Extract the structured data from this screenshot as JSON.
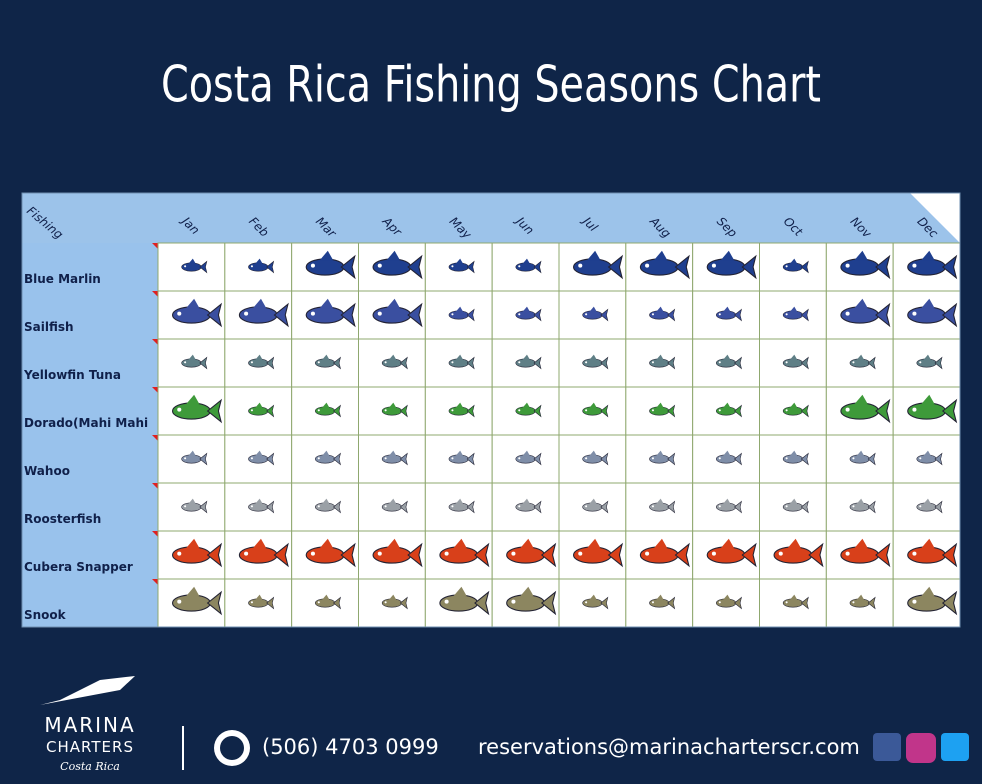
{
  "header": {
    "title": "Costa Rica Fishing Seasons Chart"
  },
  "table": {
    "corner": "Fishing",
    "months": [
      "Jan",
      "Feb",
      "Mar",
      "Apr",
      "May",
      "Jun",
      "Jul",
      "Aug",
      "Sep",
      "Oct",
      "Nov",
      "Dec"
    ],
    "rows": [
      {
        "name": "Blue Marlin",
        "color": "#1f3f8f",
        "peak": [
          false,
          false,
          true,
          true,
          false,
          false,
          true,
          true,
          true,
          false,
          true,
          true
        ]
      },
      {
        "name": "Sailfish",
        "color": "#3a4fa0",
        "peak": [
          true,
          true,
          true,
          true,
          false,
          false,
          false,
          false,
          false,
          false,
          true,
          true
        ]
      },
      {
        "name": "Yellowfin Tuna",
        "color": "#5f7f86",
        "peak": [
          false,
          false,
          false,
          false,
          false,
          false,
          false,
          false,
          false,
          false,
          false,
          false
        ]
      },
      {
        "name": "Dorado(Mahi Mahi",
        "color": "#3e9a3a",
        "peak": [
          true,
          false,
          false,
          false,
          false,
          false,
          false,
          false,
          false,
          false,
          true,
          true
        ]
      },
      {
        "name": "Wahoo",
        "color": "#7f8ea8",
        "peak": [
          false,
          false,
          false,
          false,
          false,
          false,
          false,
          false,
          false,
          false,
          false,
          false
        ]
      },
      {
        "name": "Roosterfish",
        "color": "#9aa0a6",
        "peak": [
          false,
          false,
          false,
          false,
          false,
          false,
          false,
          false,
          false,
          false,
          false,
          false
        ]
      },
      {
        "name": "Cubera Snapper",
        "color": "#d8401a",
        "peak": [
          true,
          true,
          true,
          true,
          true,
          true,
          true,
          true,
          true,
          true,
          true,
          true
        ]
      },
      {
        "name": "Snook",
        "color": "#8c8660",
        "peak": [
          true,
          false,
          false,
          false,
          true,
          true,
          false,
          false,
          false,
          false,
          false,
          true
        ]
      }
    ]
  },
  "footer": {
    "brand": "MARINA",
    "brand2": "CHARTERS",
    "tagline": "Costa Rica",
    "phone": "(506) 4703 0999",
    "email": "reservations@marinacharterscr.com"
  }
}
